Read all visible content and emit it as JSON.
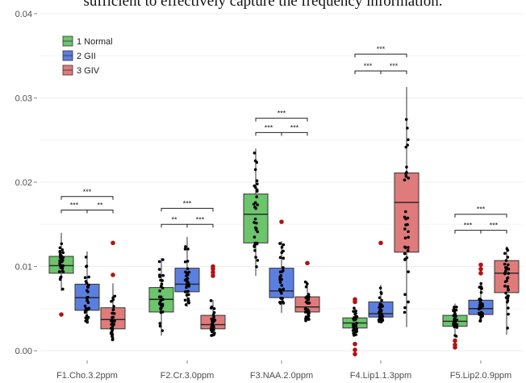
{
  "page": {
    "top_text": "sufficient to effectively capture the frequency information."
  },
  "chart_data": {
    "type": "boxplot",
    "ylim": [
      0,
      0.04
    ],
    "y_ticks": [
      "0.00",
      "0.01",
      "0.02",
      "0.03",
      "0.04"
    ],
    "grid": true,
    "legend_position": "top-left",
    "categories": [
      "F1.Cho.3.2ppm",
      "F2.Cr.3.0ppm",
      "F3.NAA.2.0ppm",
      "F4.Lip1.1.3ppm",
      "F5.Lip2.0.9ppm"
    ],
    "series": [
      {
        "name": "1 Normal",
        "color": "#6cc46c"
      },
      {
        "name": "2 GII",
        "color": "#5b7fe0"
      },
      {
        "name": "3 GIV",
        "color": "#e07b7b"
      }
    ],
    "boxes": [
      [
        {
          "q1": 0.0092,
          "median": 0.0101,
          "q3": 0.0112,
          "low": 0.0071,
          "high": 0.014,
          "outliers": [
            0.0043
          ]
        },
        {
          "q1": 0.0048,
          "median": 0.0063,
          "q3": 0.0079,
          "low": 0.0032,
          "high": 0.0118,
          "outliers": []
        },
        {
          "q1": 0.0026,
          "median": 0.0037,
          "q3": 0.0051,
          "low": 0.0012,
          "high": 0.008,
          "outliers": [
            0.0128,
            0.009
          ]
        }
      ],
      [
        {
          "q1": 0.0046,
          "median": 0.0061,
          "q3": 0.0075,
          "low": 0.0018,
          "high": 0.011,
          "outliers": []
        },
        {
          "q1": 0.007,
          "median": 0.0079,
          "q3": 0.0098,
          "low": 0.0052,
          "high": 0.0135,
          "outliers": []
        },
        {
          "q1": 0.0026,
          "median": 0.0031,
          "q3": 0.0042,
          "low": 0.0018,
          "high": 0.006,
          "outliers": [
            0.01,
            0.0097,
            0.0093,
            0.0089
          ]
        }
      ],
      [
        {
          "q1": 0.0128,
          "median": 0.0162,
          "q3": 0.0186,
          "low": 0.0089,
          "high": 0.024,
          "outliers": []
        },
        {
          "q1": 0.0063,
          "median": 0.0071,
          "q3": 0.0098,
          "low": 0.0045,
          "high": 0.013,
          "outliers": [
            0.0153
          ]
        },
        {
          "q1": 0.0046,
          "median": 0.0052,
          "q3": 0.0064,
          "low": 0.0035,
          "high": 0.0082,
          "outliers": [
            0.0104
          ]
        }
      ],
      [
        {
          "q1": 0.0027,
          "median": 0.0033,
          "q3": 0.0039,
          "low": 0.0018,
          "high": 0.0051,
          "outliers": [
            0.0061,
            0.0058,
            0.0008,
            0.0001,
            -0.0004
          ]
        },
        {
          "q1": 0.004,
          "median": 0.0044,
          "q3": 0.0058,
          "low": 0.0034,
          "high": 0.0078,
          "outliers": [
            0.0128
          ]
        },
        {
          "q1": 0.0117,
          "median": 0.0176,
          "q3": 0.0211,
          "low": 0.0028,
          "high": 0.0313,
          "outliers": []
        }
      ],
      [
        {
          "q1": 0.0029,
          "median": 0.0035,
          "q3": 0.0042,
          "low": 0.0017,
          "high": 0.0056,
          "outliers": [
            0.0012,
            0.0007,
            0.0004
          ]
        },
        {
          "q1": 0.0043,
          "median": 0.005,
          "q3": 0.006,
          "low": 0.0035,
          "high": 0.008,
          "outliers": [
            0.0102,
            0.0097,
            0.0092
          ]
        },
        {
          "q1": 0.0069,
          "median": 0.0092,
          "q3": 0.0107,
          "low": 0.0019,
          "high": 0.0124,
          "outliers": []
        }
      ]
    ],
    "comparisons": [
      {
        "category": 0,
        "pairs": [
          {
            "a": 0,
            "b": 1,
            "label": "***",
            "y": 0.0167
          },
          {
            "a": 1,
            "b": 2,
            "label": "**",
            "y": 0.0167
          },
          {
            "a": 0,
            "b": 2,
            "label": "***",
            "y": 0.0183
          }
        ]
      },
      {
        "category": 1,
        "pairs": [
          {
            "a": 0,
            "b": 1,
            "label": "**",
            "y": 0.015
          },
          {
            "a": 1,
            "b": 2,
            "label": "***",
            "y": 0.015
          },
          {
            "a": 0,
            "b": 2,
            "label": "***",
            "y": 0.0169
          }
        ]
      },
      {
        "category": 2,
        "pairs": [
          {
            "a": 0,
            "b": 1,
            "label": "***",
            "y": 0.0259
          },
          {
            "a": 1,
            "b": 2,
            "label": "***",
            "y": 0.0259
          },
          {
            "a": 0,
            "b": 2,
            "label": "***",
            "y": 0.0276
          }
        ]
      },
      {
        "category": 3,
        "pairs": [
          {
            "a": 0,
            "b": 1,
            "label": "***",
            "y": 0.0332
          },
          {
            "a": 1,
            "b": 2,
            "label": "***",
            "y": 0.0332
          },
          {
            "a": 0,
            "b": 2,
            "label": "***",
            "y": 0.0352
          }
        ]
      },
      {
        "category": 4,
        "pairs": [
          {
            "a": 0,
            "b": 1,
            "label": "***",
            "y": 0.0143
          },
          {
            "a": 1,
            "b": 2,
            "label": "***",
            "y": 0.0143
          },
          {
            "a": 0,
            "b": 2,
            "label": "***",
            "y": 0.0162
          }
        ]
      }
    ]
  }
}
